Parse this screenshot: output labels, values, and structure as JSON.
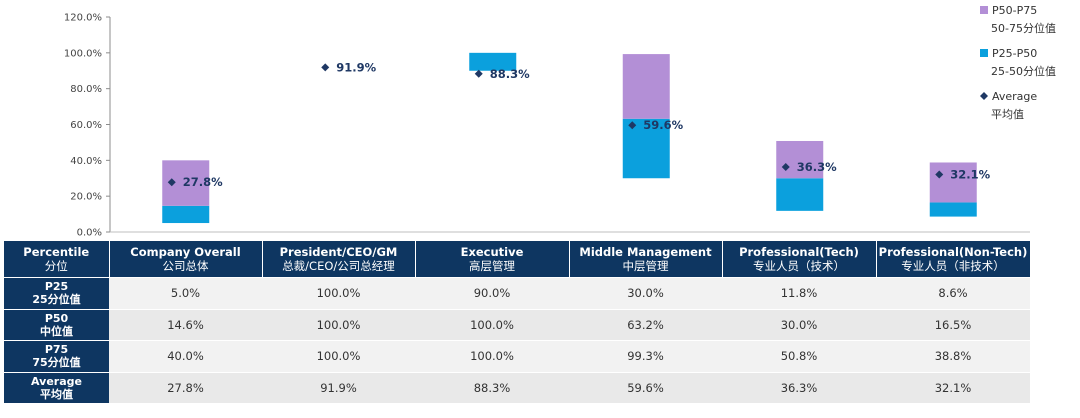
{
  "chart_data": {
    "type": "bar",
    "subtype": "floating-range-with-average-marker",
    "categories": [
      {
        "en": "Company Overall",
        "cn": "公司总体"
      },
      {
        "en": "President/CEO/GM",
        "cn": "总裁/CEO/公司总经理"
      },
      {
        "en": "Executive",
        "cn": "高层管理"
      },
      {
        "en": "Middle Management",
        "cn": "中层管理"
      },
      {
        "en": "Professional(Tech)",
        "cn": "专业人员（技术）"
      },
      {
        "en": "Professional(Non-Tech)",
        "cn": "专业人员（非技术）"
      }
    ],
    "series": [
      {
        "key": "p25",
        "values": [
          5.0,
          100.0,
          90.0,
          30.0,
          11.8,
          8.6
        ]
      },
      {
        "key": "p50",
        "values": [
          14.6,
          100.0,
          100.0,
          63.2,
          30.0,
          16.5
        ]
      },
      {
        "key": "p75",
        "values": [
          40.0,
          100.0,
          100.0,
          99.3,
          50.8,
          38.8
        ]
      },
      {
        "key": "average",
        "values": [
          27.8,
          91.9,
          88.3,
          59.6,
          36.3,
          32.1
        ]
      }
    ],
    "ylim": [
      0,
      120
    ],
    "yticks": [
      "0.0%",
      "20.0%",
      "40.0%",
      "60.0%",
      "80.0%",
      "100.0%",
      "120.0%"
    ],
    "average_labels": [
      "27.8%",
      "91.9%",
      "88.3%",
      "59.6%",
      "36.3%",
      "32.1%"
    ],
    "legend": {
      "position": "right",
      "items": [
        {
          "line1": "P50-P75",
          "line2": "50-75分位值",
          "marker": "square",
          "color": "#b38fd6"
        },
        {
          "line1": "P25-P50",
          "line2": "25-50分位值",
          "marker": "square",
          "color": "#0ba0dd"
        },
        {
          "line1": "Average",
          "line2": "平均值",
          "marker": "diamond",
          "color": "#1f3864"
        }
      ]
    },
    "colors": {
      "p50_p75": "#b38fd6",
      "p25_p50": "#0ba0dd",
      "average": "#1f3864"
    },
    "grid": false
  },
  "table": {
    "header_label": {
      "en": "Percentile",
      "cn": "分位"
    },
    "rows": [
      {
        "label_en": "P25",
        "label_cn": "25分位值",
        "cells": [
          "5.0%",
          "100.0%",
          "90.0%",
          "30.0%",
          "11.8%",
          "8.6%"
        ]
      },
      {
        "label_en": "P50",
        "label_cn": "中位值",
        "cells": [
          "14.6%",
          "100.0%",
          "100.0%",
          "63.2%",
          "30.0%",
          "16.5%"
        ]
      },
      {
        "label_en": "P75",
        "label_cn": "75分位值",
        "cells": [
          "40.0%",
          "100.0%",
          "100.0%",
          "99.3%",
          "50.8%",
          "38.8%"
        ]
      },
      {
        "label_en": "Average",
        "label_cn": "平均值",
        "cells": [
          "27.8%",
          "91.9%",
          "88.3%",
          "59.6%",
          "36.3%",
          "32.1%"
        ]
      }
    ]
  }
}
